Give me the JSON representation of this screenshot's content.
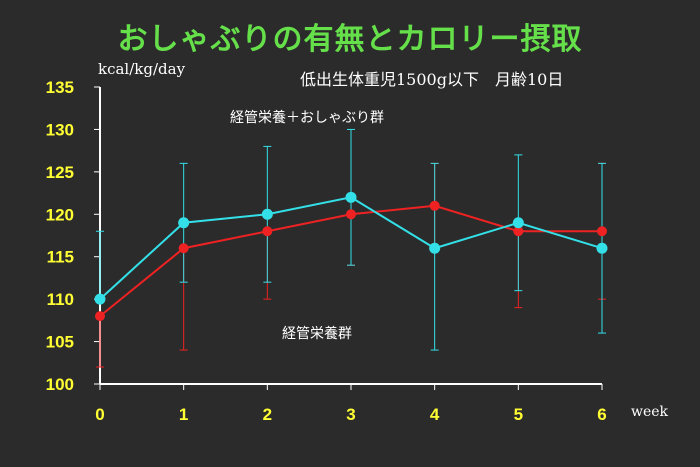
{
  "header": {
    "title": "おしゃぶりの有無とカロリー摂取",
    "subtitle": "低出生体重児1500g以下　月齢10日"
  },
  "chart_data": {
    "type": "line",
    "ylabel": "kcal/kg/day",
    "xlabel": "week",
    "x": [
      0,
      1,
      2,
      3,
      4,
      5,
      6
    ],
    "xlim": [
      0,
      6
    ],
    "ylim": [
      100,
      135
    ],
    "yticks": [
      100,
      105,
      110,
      115,
      120,
      125,
      130,
      135
    ],
    "grid": false,
    "series": [
      {
        "name": "経管栄養＋おしゃぶり群",
        "color": "#33e0e8",
        "values": [
          110,
          119,
          120,
          122,
          116,
          119,
          116
        ],
        "error_upper": [
          118,
          126,
          128,
          130,
          126,
          127,
          126
        ],
        "error_lower": [
          110,
          112,
          112,
          114,
          104,
          111,
          106
        ]
      },
      {
        "name": "経管栄養群",
        "color": "#ee2222",
        "values": [
          108,
          116,
          118,
          120,
          121,
          118,
          118
        ],
        "error_upper": [
          108,
          116,
          118,
          120,
          126,
          118,
          126
        ],
        "error_lower": [
          102,
          104,
          110,
          114,
          116,
          109,
          110
        ]
      }
    ]
  }
}
